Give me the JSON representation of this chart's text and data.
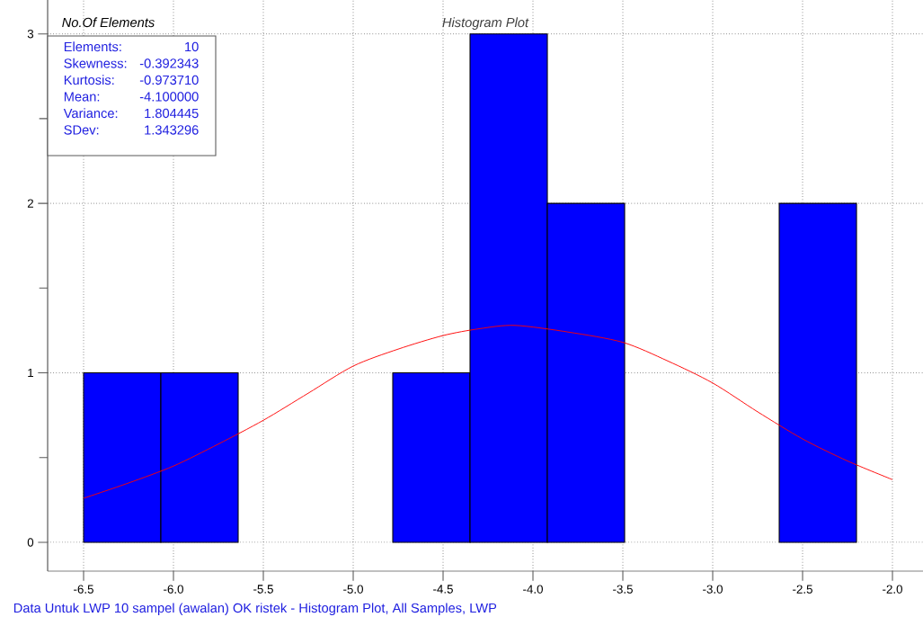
{
  "chart_data": {
    "type": "histogram",
    "title": "Histogram Plot",
    "bins": [
      -6.5,
      -6.07,
      -5.64,
      -5.21,
      -4.78,
      -4.35,
      -3.92,
      -3.49,
      -3.06,
      -2.63,
      -2.2
    ],
    "values": [
      1,
      1,
      0,
      0,
      1,
      3,
      2,
      0,
      0,
      2
    ],
    "color": "#0000ff",
    "series": [
      {
        "type": "line",
        "color": "#ff0000",
        "x": [
          -6.5,
          -6.25,
          -6.0,
          -5.75,
          -5.5,
          -5.25,
          -5.0,
          -4.75,
          -4.5,
          -4.3,
          -4.1,
          -3.8,
          -3.5,
          -3.25,
          -3.0,
          -2.75,
          -2.5,
          -2.25,
          -2.0
        ],
        "values": [
          0.26,
          0.35,
          0.45,
          0.58,
          0.72,
          0.88,
          1.04,
          1.14,
          1.22,
          1.26,
          1.28,
          1.24,
          1.18,
          1.07,
          0.94,
          0.77,
          0.61,
          0.48,
          0.37
        ]
      }
    ],
    "xlim": [
      -6.7,
      -1.83
    ],
    "ylim": [
      -0.17,
      3.2
    ],
    "xticks": [
      -6.5,
      {
        "value": -6.0,
        "label": "-6.0"
      },
      -5.5,
      {
        "value": -5.0,
        "label": "-5.0"
      },
      -4.5,
      {
        "value": -4.0,
        "label": "-4.0"
      },
      -3.5,
      {
        "value": -3.0,
        "label": "-3.0"
      },
      -2.5,
      {
        "value": -2.0,
        "label": "-2.0"
      }
    ],
    "yticks": [
      0,
      {
        "value": 0.5,
        "label": null
      },
      1,
      {
        "value": 1.5,
        "label": null
      },
      2,
      {
        "value": 2.5,
        "label": null
      },
      3
    ],
    "grid": true,
    "annotations": [
      "No.Of Elements",
      "Elements:",
      "10",
      "Skewness:",
      "-0.392343",
      "Kurtosis:",
      "-0.973710",
      "Mean:",
      "-4.100000",
      "Variance:",
      "1.804445",
      "SDev:",
      "1.343296",
      "Data Untuk LWP 10 sampel (awalan) OK ristek - Histogram Plot, All Samples, LWP"
    ]
  }
}
